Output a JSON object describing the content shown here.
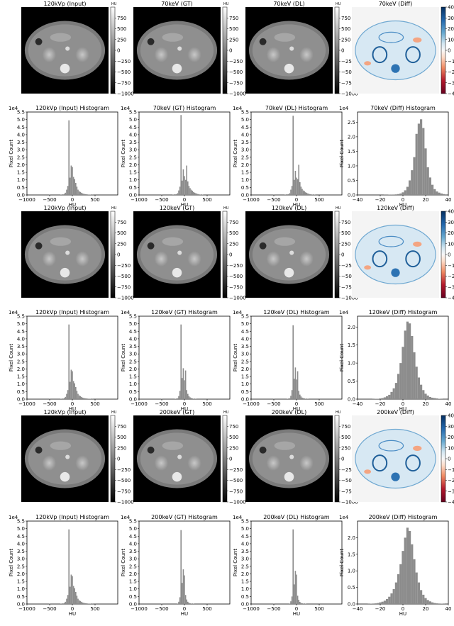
{
  "colors": {
    "hist_bar": "#8c8c8c",
    "ct_background": "#000000",
    "diff_positive": "#2166ac",
    "diff_negative": "#b2182b",
    "diff_zero": "#f7f7f7"
  },
  "colorbars": {
    "gray_unit": "HU",
    "gray_ticks": [
      "750",
      "500",
      "250",
      "0",
      "−250",
      "−500",
      "−750",
      "−1000"
    ],
    "diff_ticks": [
      "40",
      "30",
      "20",
      "10",
      "0",
      "−10",
      "−20",
      "−30",
      "−40"
    ],
    "gray_range": [
      -1000,
      1000
    ],
    "diff_range": [
      -40,
      40
    ],
    "gray_colormap": "gray",
    "diff_colormap": "RdBu"
  },
  "image_titles": [
    [
      "120kVp (Input)",
      "70keV (GT)",
      "70keV (DL)",
      "70keV (Diff)"
    ],
    [
      "120kVp (Input)",
      "120keV (GT)",
      "120keV (DL)",
      "120keV (Diff)"
    ],
    [
      "120kVp (Input)",
      "200keV (GT)",
      "200keV (DL)",
      "200keV (Diff)"
    ]
  ],
  "hist_common": {
    "xlabel": "HU",
    "ylabel": "Pixel Count",
    "scale_label": "1e4",
    "hu_xticks": [
      "−1000",
      "−500",
      "0",
      "500"
    ],
    "diff_xticks": [
      "−40",
      "−20",
      "0",
      "20",
      "40"
    ]
  },
  "chart_data": [
    {
      "type": "bar",
      "title": "120kVp (Input) Histogram",
      "xlabel": "HU",
      "ylabel": "Pixel Count",
      "xlim": [
        -1000,
        1000
      ],
      "ylim": [
        0,
        5.5
      ],
      "bin_width": 25,
      "yticks": [
        "0.0",
        "0.5",
        "1.0",
        "1.5",
        "2.0",
        "2.5",
        "3.0",
        "3.5",
        "4.0",
        "4.5",
        "5.0",
        "5.5"
      ],
      "x": [
        -500,
        -250,
        -200,
        -175,
        -150,
        -125,
        -100,
        -75,
        -50,
        -25,
        0,
        25,
        50,
        75,
        100,
        125,
        150,
        175,
        200,
        225,
        250,
        275,
        300,
        325,
        350,
        375,
        400,
        450
      ],
      "values": [
        0.01,
        0.02,
        0.04,
        0.08,
        0.15,
        0.35,
        0.6,
        4.95,
        1.15,
        1.95,
        1.85,
        1.2,
        1.05,
        0.8,
        0.55,
        0.35,
        0.25,
        0.2,
        0.15,
        0.1,
        0.08,
        0.06,
        0.05,
        0.04,
        0.03,
        0.02,
        0.02,
        0.01
      ]
    },
    {
      "type": "bar",
      "title": "70keV (GT) Histogram",
      "xlabel": "HU",
      "ylabel": "Pixel Count",
      "xlim": [
        -1000,
        1000
      ],
      "ylim": [
        0,
        5.5
      ],
      "bin_width": 25,
      "yticks": [
        "0.0",
        "0.5",
        "1.0",
        "1.5",
        "2.0",
        "2.5",
        "3.0",
        "3.5",
        "4.0",
        "4.5",
        "5.0",
        "5.5"
      ],
      "x": [
        -500,
        -250,
        -175,
        -150,
        -125,
        -100,
        -75,
        -50,
        -25,
        0,
        25,
        50,
        75,
        100,
        125,
        150,
        175,
        200,
        225,
        250,
        275,
        300,
        325,
        350,
        400
      ],
      "values": [
        0.01,
        0.02,
        0.05,
        0.12,
        0.3,
        0.55,
        5.3,
        0.95,
        1.7,
        1.25,
        1.0,
        1.95,
        0.9,
        0.6,
        0.45,
        0.35,
        0.28,
        0.2,
        0.15,
        0.12,
        0.08,
        0.06,
        0.04,
        0.03,
        0.02
      ]
    },
    {
      "type": "bar",
      "title": "70keV (DL) Histogram",
      "xlabel": "HU",
      "ylabel": "Pixel Count",
      "xlim": [
        -1000,
        1000
      ],
      "ylim": [
        0,
        5.5
      ],
      "bin_width": 25,
      "yticks": [
        "0.0",
        "0.5",
        "1.0",
        "1.5",
        "2.0",
        "2.5",
        "3.0",
        "3.5",
        "4.0",
        "4.5",
        "5.0",
        "5.5"
      ],
      "x": [
        -500,
        -250,
        -175,
        -150,
        -125,
        -100,
        -75,
        -50,
        -25,
        0,
        25,
        50,
        75,
        100,
        125,
        150,
        175,
        200,
        225,
        250,
        275,
        300,
        325,
        350,
        400
      ],
      "values": [
        0.01,
        0.02,
        0.05,
        0.12,
        0.35,
        0.6,
        5.25,
        1.0,
        1.6,
        1.15,
        1.05,
        2.0,
        0.85,
        0.55,
        0.4,
        0.3,
        0.25,
        0.18,
        0.14,
        0.1,
        0.07,
        0.05,
        0.04,
        0.03,
        0.02
      ]
    },
    {
      "type": "bar",
      "title": "70keV (Diff) Histogram",
      "xlabel": "HU",
      "ylabel": "Pixel Count",
      "xlim": [
        -40,
        40
      ],
      "ylim": [
        0,
        2.85
      ],
      "bin_width": 2,
      "yticks": [
        "0.0",
        "0.5",
        "1.0",
        "1.5",
        "2.0",
        "2.5"
      ],
      "x": [
        -16,
        -14,
        -12,
        -10,
        -8,
        -6,
        -4,
        -2,
        0,
        2,
        4,
        6,
        8,
        10,
        12,
        14,
        16,
        18,
        20,
        22,
        24,
        26,
        28,
        30,
        32,
        34,
        36,
        38
      ],
      "values": [
        0.005,
        0.005,
        0.01,
        0.01,
        0.015,
        0.02,
        0.03,
        0.05,
        0.09,
        0.16,
        0.28,
        0.5,
        0.85,
        1.3,
        2.1,
        2.45,
        2.6,
        2.3,
        1.6,
        0.95,
        0.6,
        0.35,
        0.2,
        0.12,
        0.08,
        0.05,
        0.03,
        0.02
      ]
    },
    {
      "type": "bar",
      "title": "120kVp (Input) Histogram",
      "xlabel": "HU",
      "ylabel": "Pixel Count",
      "xlim": [
        -1000,
        1000
      ],
      "ylim": [
        0,
        5.5
      ],
      "bin_width": 25,
      "yticks": [
        "0.0",
        "0.5",
        "1.0",
        "1.5",
        "2.0",
        "2.5",
        "3.0",
        "3.5",
        "4.0",
        "4.5",
        "5.0",
        "5.5"
      ],
      "x": [
        -500,
        -250,
        -200,
        -175,
        -150,
        -125,
        -100,
        -75,
        -50,
        -25,
        0,
        25,
        50,
        75,
        100,
        125,
        150,
        175,
        200,
        225,
        250,
        275,
        300,
        325,
        350,
        375,
        400,
        450
      ],
      "values": [
        0.01,
        0.02,
        0.04,
        0.08,
        0.15,
        0.35,
        0.6,
        4.95,
        1.15,
        1.95,
        1.85,
        1.2,
        1.05,
        0.8,
        0.55,
        0.35,
        0.25,
        0.2,
        0.15,
        0.1,
        0.08,
        0.06,
        0.05,
        0.04,
        0.03,
        0.02,
        0.02,
        0.01
      ]
    },
    {
      "type": "bar",
      "title": "120keV (GT) Histogram",
      "xlabel": "HU",
      "ylabel": "Pixel Count",
      "xlim": [
        -1000,
        1000
      ],
      "ylim": [
        0,
        5.5
      ],
      "bin_width": 25,
      "yticks": [
        "0.0",
        "0.5",
        "1.0",
        "1.5",
        "2.0",
        "2.5",
        "3.0",
        "3.5",
        "4.0",
        "4.5",
        "5.0",
        "5.5"
      ],
      "x": [
        -500,
        -200,
        -150,
        -125,
        -100,
        -75,
        -50,
        -25,
        0,
        25,
        50,
        75,
        100,
        125,
        150,
        175,
        200,
        250
      ],
      "values": [
        0.01,
        0.02,
        0.06,
        0.2,
        0.55,
        4.95,
        1.4,
        2.05,
        1.25,
        1.9,
        0.6,
        0.35,
        0.2,
        0.12,
        0.08,
        0.05,
        0.03,
        0.02
      ]
    },
    {
      "type": "bar",
      "title": "120keV (DL) Histogram",
      "xlabel": "HU",
      "ylabel": "Pixel Count",
      "xlim": [
        -1000,
        1000
      ],
      "ylim": [
        0,
        5.5
      ],
      "bin_width": 25,
      "yticks": [
        "0.0",
        "0.5",
        "1.0",
        "1.5",
        "2.0",
        "2.5",
        "3.0",
        "3.5",
        "4.0",
        "4.5",
        "5.0",
        "5.5"
      ],
      "x": [
        -500,
        -200,
        -150,
        -125,
        -100,
        -75,
        -50,
        -25,
        0,
        25,
        50,
        75,
        100,
        125,
        150,
        175,
        200,
        250
      ],
      "values": [
        0.01,
        0.02,
        0.06,
        0.22,
        0.6,
        4.9,
        1.35,
        2.1,
        1.3,
        1.85,
        0.55,
        0.3,
        0.18,
        0.1,
        0.07,
        0.05,
        0.03,
        0.02
      ]
    },
    {
      "type": "bar",
      "title": "120keV (Diff) Histogram",
      "xlabel": "HU",
      "ylabel": "Pixel Count",
      "xlim": [
        -40,
        40
      ],
      "ylim": [
        0,
        2.3
      ],
      "bin_width": 2,
      "yticks": [
        "0.0",
        "0.5",
        "1.0",
        "1.5",
        "2.0"
      ],
      "x": [
        -26,
        -24,
        -22,
        -20,
        -18,
        -16,
        -14,
        -12,
        -10,
        -8,
        -6,
        -4,
        -2,
        0,
        2,
        4,
        6,
        8,
        10,
        12,
        14,
        16,
        18,
        20,
        22,
        24,
        26,
        28,
        30,
        32,
        34
      ],
      "values": [
        0.005,
        0.01,
        0.01,
        0.02,
        0.03,
        0.05,
        0.08,
        0.12,
        0.2,
        0.3,
        0.45,
        0.7,
        1.0,
        1.45,
        1.9,
        2.15,
        2.1,
        1.75,
        1.3,
        0.9,
        0.6,
        0.4,
        0.25,
        0.15,
        0.1,
        0.06,
        0.04,
        0.03,
        0.02,
        0.01,
        0.005
      ]
    },
    {
      "type": "bar",
      "title": "120kVp (Input) Histogram",
      "xlabel": "HU",
      "ylabel": "Pixel Count",
      "xlim": [
        -1000,
        1000
      ],
      "ylim": [
        0,
        5.5
      ],
      "bin_width": 25,
      "yticks": [
        "0.0",
        "0.5",
        "1.0",
        "1.5",
        "2.0",
        "2.5",
        "3.0",
        "3.5",
        "4.0",
        "4.5",
        "5.0",
        "5.5"
      ],
      "x": [
        -500,
        -250,
        -200,
        -175,
        -150,
        -125,
        -100,
        -75,
        -50,
        -25,
        0,
        25,
        50,
        75,
        100,
        125,
        150,
        175,
        200,
        225,
        250,
        275,
        300,
        325,
        350,
        375,
        400,
        450
      ],
      "values": [
        0.01,
        0.02,
        0.04,
        0.08,
        0.15,
        0.35,
        0.6,
        4.95,
        1.15,
        1.95,
        1.85,
        1.2,
        1.05,
        0.8,
        0.55,
        0.35,
        0.25,
        0.2,
        0.15,
        0.1,
        0.08,
        0.06,
        0.05,
        0.04,
        0.03,
        0.02,
        0.02,
        0.01
      ]
    },
    {
      "type": "bar",
      "title": "200keV (GT) Histogram",
      "xlabel": "HU",
      "ylabel": "Pixel Count",
      "xlim": [
        -1000,
        1000
      ],
      "ylim": [
        0,
        5.5
      ],
      "bin_width": 25,
      "yticks": [
        "0.0",
        "0.5",
        "1.0",
        "1.5",
        "2.0",
        "2.5",
        "3.0",
        "3.5",
        "4.0",
        "4.5",
        "5.0",
        "5.5"
      ],
      "x": [
        -500,
        -150,
        -125,
        -100,
        -75,
        -50,
        -25,
        0,
        25,
        50,
        75,
        100,
        125,
        150,
        200
      ],
      "values": [
        0.01,
        0.03,
        0.15,
        0.45,
        4.9,
        1.4,
        2.3,
        1.9,
        0.6,
        0.3,
        0.15,
        0.08,
        0.05,
        0.03,
        0.02
      ]
    },
    {
      "type": "bar",
      "title": "200keV (DL) Histogram",
      "xlabel": "HU",
      "ylabel": "Pixel Count",
      "xlim": [
        -1000,
        1000
      ],
      "ylim": [
        0,
        5.5
      ],
      "bin_width": 25,
      "yticks": [
        "0.0",
        "0.5",
        "1.0",
        "1.5",
        "2.0",
        "2.5",
        "3.0",
        "3.5",
        "4.0",
        "4.5",
        "5.0",
        "5.5"
      ],
      "x": [
        -500,
        -150,
        -125,
        -100,
        -75,
        -50,
        -25,
        0,
        25,
        50,
        75,
        100,
        125,
        150,
        200
      ],
      "values": [
        0.01,
        0.03,
        0.18,
        0.5,
        4.95,
        1.3,
        2.2,
        1.95,
        0.55,
        0.28,
        0.14,
        0.07,
        0.05,
        0.03,
        0.02
      ]
    },
    {
      "type": "bar",
      "title": "200keV (Diff) Histogram",
      "xlabel": "HU",
      "ylabel": "Pixel Count",
      "xlim": [
        -40,
        40
      ],
      "ylim": [
        0,
        2.5
      ],
      "bin_width": 2,
      "yticks": [
        "0.0",
        "0.5",
        "1.0",
        "1.5",
        "2.0"
      ],
      "x": [
        -30,
        -28,
        -26,
        -24,
        -22,
        -20,
        -18,
        -16,
        -14,
        -12,
        -10,
        -8,
        -6,
        -4,
        -2,
        0,
        2,
        4,
        6,
        8,
        10,
        12,
        14,
        16,
        18,
        20,
        22,
        24,
        26,
        28,
        30,
        32,
        34,
        36
      ],
      "values": [
        0.005,
        0.01,
        0.015,
        0.02,
        0.03,
        0.05,
        0.07,
        0.1,
        0.15,
        0.22,
        0.32,
        0.45,
        0.65,
        0.9,
        1.2,
        1.6,
        2.0,
        2.3,
        2.2,
        1.8,
        1.35,
        0.95,
        0.65,
        0.42,
        0.28,
        0.18,
        0.12,
        0.08,
        0.05,
        0.03,
        0.02,
        0.015,
        0.01,
        0.005
      ]
    }
  ]
}
